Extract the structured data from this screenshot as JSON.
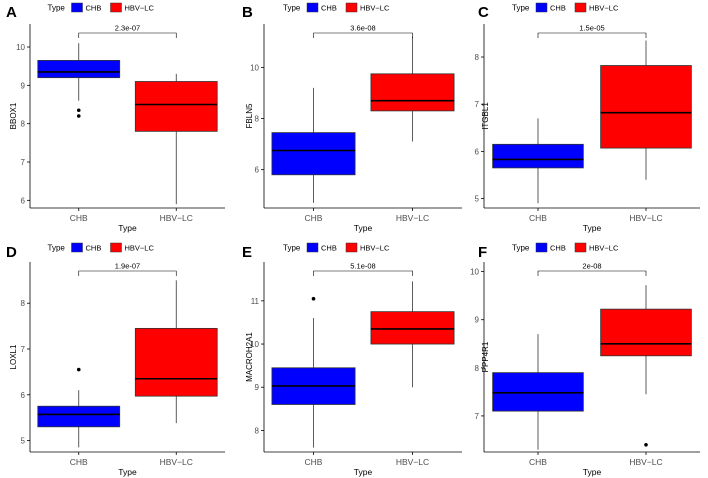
{
  "legend": {
    "title": "Type",
    "items": [
      {
        "label": "CHB",
        "color": "#0000ff"
      },
      {
        "label": "HBV−LC",
        "color": "#ff0000"
      }
    ]
  },
  "chart_data": [
    {
      "panel": "A",
      "type": "box",
      "ylabel": "BBOX1",
      "xlabel": "Type",
      "categories": [
        "CHB",
        "HBV−LC"
      ],
      "ylim": [
        5.8,
        10.6
      ],
      "yticks": [
        6,
        7,
        8,
        9,
        10
      ],
      "pvalue": "2.3e-07",
      "series": [
        {
          "name": "CHB",
          "color": "#0000ff",
          "whisker_low": 8.6,
          "q1": 9.2,
          "median": 9.35,
          "q3": 9.65,
          "whisker_high": 10.1,
          "outliers": [
            8.35,
            8.2
          ]
        },
        {
          "name": "HBV−LC",
          "color": "#ff0000",
          "whisker_low": 5.9,
          "q1": 7.8,
          "median": 8.5,
          "q3": 9.1,
          "whisker_high": 9.3,
          "outliers": []
        }
      ]
    },
    {
      "panel": "B",
      "type": "box",
      "ylabel": "FBLN5",
      "xlabel": "Type",
      "categories": [
        "CHB",
        "HBV−LC"
      ],
      "ylim": [
        4.5,
        11.7
      ],
      "yticks": [
        6,
        8,
        10
      ],
      "pvalue": "3.6e-08",
      "series": [
        {
          "name": "CHB",
          "color": "#0000ff",
          "whisker_low": 4.7,
          "q1": 5.8,
          "median": 6.75,
          "q3": 7.45,
          "whisker_high": 9.2,
          "outliers": []
        },
        {
          "name": "HBV−LC",
          "color": "#ff0000",
          "whisker_low": 7.1,
          "q1": 8.3,
          "median": 8.7,
          "q3": 9.75,
          "whisker_high": 11.2,
          "outliers": []
        }
      ]
    },
    {
      "panel": "C",
      "type": "box",
      "ylabel": "ITGBL1",
      "xlabel": "Type",
      "categories": [
        "CHB",
        "HBV−LC"
      ],
      "ylim": [
        4.8,
        8.7
      ],
      "yticks": [
        5,
        6,
        7,
        8
      ],
      "pvalue": "1.5e-05",
      "series": [
        {
          "name": "CHB",
          "color": "#0000ff",
          "whisker_low": 4.9,
          "q1": 5.65,
          "median": 5.83,
          "q3": 6.15,
          "whisker_high": 6.7,
          "outliers": []
        },
        {
          "name": "HBV−LC",
          "color": "#ff0000",
          "whisker_low": 5.4,
          "q1": 6.07,
          "median": 6.82,
          "q3": 7.82,
          "whisker_high": 8.35,
          "outliers": []
        }
      ]
    },
    {
      "panel": "D",
      "type": "box",
      "ylabel": "LOXL1",
      "xlabel": "Type",
      "categories": [
        "CHB",
        "HBV−LC"
      ],
      "ylim": [
        4.75,
        8.9
      ],
      "yticks": [
        5,
        6,
        7,
        8
      ],
      "pvalue": "1.9e-07",
      "series": [
        {
          "name": "CHB",
          "color": "#0000ff",
          "whisker_low": 4.85,
          "q1": 5.3,
          "median": 5.57,
          "q3": 5.75,
          "whisker_high": 6.1,
          "outliers": [
            6.55
          ]
        },
        {
          "name": "HBV−LC",
          "color": "#ff0000",
          "whisker_low": 5.38,
          "q1": 5.97,
          "median": 6.35,
          "q3": 7.45,
          "whisker_high": 8.5,
          "outliers": []
        }
      ]
    },
    {
      "panel": "E",
      "type": "box",
      "ylabel": "MACROH2A1",
      "xlabel": "Type",
      "categories": [
        "CHB",
        "HBV−LC"
      ],
      "ylim": [
        7.5,
        11.9
      ],
      "yticks": [
        8,
        9,
        10,
        11
      ],
      "pvalue": "5.1e-08",
      "series": [
        {
          "name": "CHB",
          "color": "#0000ff",
          "whisker_low": 7.6,
          "q1": 8.6,
          "median": 9.03,
          "q3": 9.45,
          "whisker_high": 10.6,
          "outliers": [
            11.05
          ]
        },
        {
          "name": "HBV−LC",
          "color": "#ff0000",
          "whisker_low": 9.0,
          "q1": 10.0,
          "median": 10.35,
          "q3": 10.75,
          "whisker_high": 11.45,
          "outliers": []
        }
      ]
    },
    {
      "panel": "F",
      "type": "box",
      "ylabel": "PPP4R1",
      "xlabel": "Type",
      "categories": [
        "CHB",
        "HBV−LC"
      ],
      "ylim": [
        6.25,
        10.2
      ],
      "yticks": [
        7,
        8,
        9,
        10
      ],
      "pvalue": "2e-08",
      "series": [
        {
          "name": "CHB",
          "color": "#0000ff",
          "whisker_low": 6.3,
          "q1": 7.1,
          "median": 7.48,
          "q3": 7.9,
          "whisker_high": 8.7,
          "outliers": []
        },
        {
          "name": "HBV−LC",
          "color": "#ff0000",
          "whisker_low": 7.45,
          "q1": 8.25,
          "median": 8.5,
          "q3": 9.22,
          "whisker_high": 9.72,
          "outliers": [
            6.4
          ]
        }
      ]
    }
  ]
}
